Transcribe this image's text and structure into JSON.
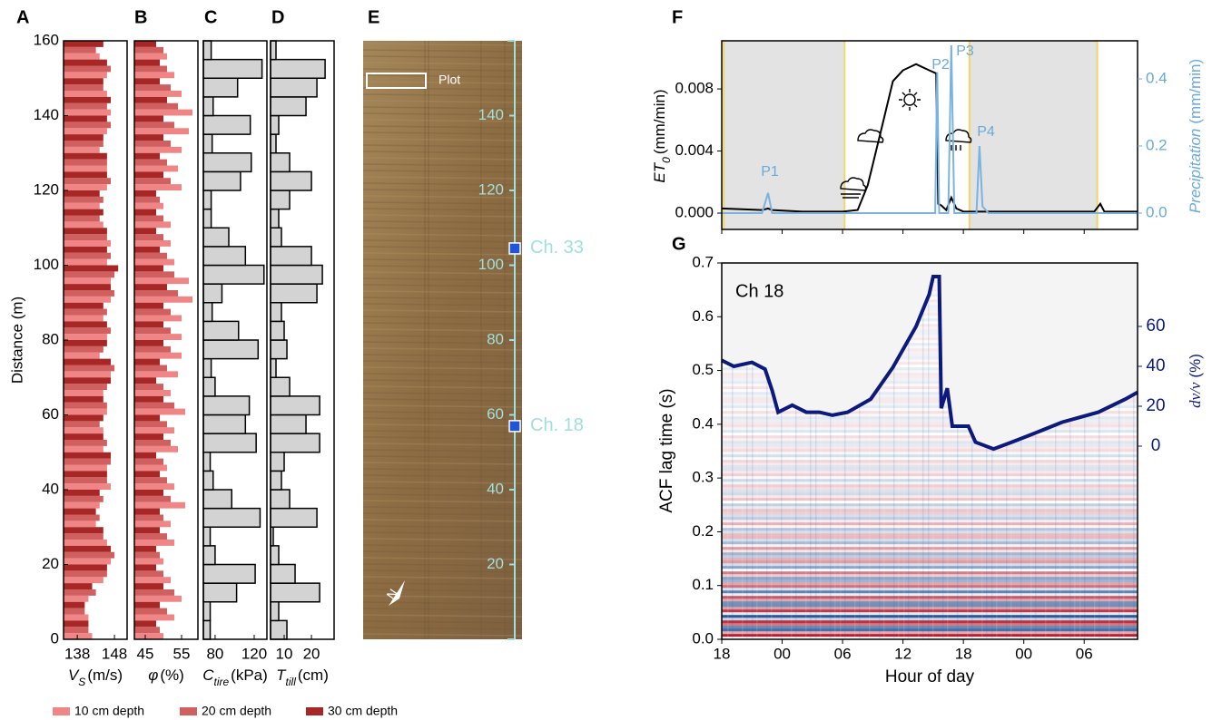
{
  "chart_data": [
    {
      "type": "hbar",
      "panel": "A",
      "ylabel": "Distance (m)",
      "xlabel": "V",
      "xlabel_sub": "S",
      "xlabel_unit": "(m/s)",
      "y": [
        2.5,
        7.5,
        12.5,
        17.5,
        22.5,
        27.5,
        32.5,
        37.5,
        42.5,
        47.5,
        52.5,
        57.5,
        62.5,
        67.5,
        72.5,
        77.5,
        82.5,
        87.5,
        92.5,
        97.5,
        102.5,
        107.5,
        112.5,
        117.5,
        122.5,
        127.5,
        132.5,
        137.5,
        142.5,
        147.5,
        152.5,
        157.5
      ],
      "series": [
        {
          "name": "10 cm depth",
          "color": "#ef8585",
          "values": [
            142,
            141,
            141,
            145,
            147,
            146,
            143,
            144,
            147,
            146,
            145,
            145,
            146,
            145,
            147,
            144,
            146,
            145,
            147,
            147,
            146,
            147,
            145,
            144,
            146,
            146,
            144,
            146,
            147,
            146,
            146,
            144
          ]
        },
        {
          "name": "20 cm depth",
          "color": "#d05f5f",
          "values": [
            141,
            140,
            143,
            146,
            148,
            145,
            144,
            145,
            146,
            147,
            146,
            144,
            146,
            146,
            148,
            145,
            147,
            146,
            148,
            148,
            147,
            146,
            144,
            145,
            147,
            146,
            145,
            147,
            146,
            145,
            147,
            143
          ]
        },
        {
          "name": "30 cm depth",
          "color": "#a72626",
          "values": [
            141,
            140,
            142,
            146,
            147,
            145,
            143,
            144,
            146,
            147,
            145,
            145,
            145,
            147,
            147,
            146,
            146,
            145,
            147,
            149,
            146,
            146,
            145,
            144,
            146,
            146,
            145,
            146,
            147,
            145,
            146,
            145
          ]
        }
      ],
      "xlim": [
        134.3,
        151.4
      ],
      "xticks": [
        138,
        148
      ],
      "ylim": [
        0,
        160
      ],
      "yticks": [
        0,
        20,
        40,
        60,
        80,
        100,
        120,
        140,
        160
      ]
    },
    {
      "type": "hbar",
      "panel": "B",
      "xlabel": "φ",
      "xlabel_unit": "(%)",
      "y": [
        2.5,
        7.5,
        12.5,
        17.5,
        22.5,
        27.5,
        32.5,
        37.5,
        42.5,
        47.5,
        52.5,
        57.5,
        62.5,
        67.5,
        72.5,
        77.5,
        82.5,
        87.5,
        92.5,
        97.5,
        102.5,
        107.5,
        112.5,
        117.5,
        122.5,
        127.5,
        132.5,
        137.5,
        142.5,
        147.5,
        152.5,
        157.5
      ],
      "series": [
        {
          "name": "10 cm depth",
          "color": "#ef8585",
          "values": [
            50,
            53,
            55,
            52,
            50,
            53,
            52,
            56,
            53,
            51,
            54,
            53,
            56,
            52,
            54,
            55,
            55,
            55,
            58,
            57,
            53,
            52,
            52,
            50,
            55,
            54,
            55,
            57,
            58,
            55,
            53,
            51
          ]
        },
        {
          "name": "20 cm depth",
          "color": "#d05f5f",
          "values": [
            49,
            51,
            53,
            50,
            49,
            51,
            50,
            52,
            51,
            50,
            52,
            51,
            53,
            50,
            51,
            52,
            52,
            52,
            54,
            53,
            51,
            50,
            50,
            49,
            52,
            51,
            52,
            53,
            54,
            52,
            51,
            50
          ]
        },
        {
          "name": "30 cm depth",
          "color": "#a72626",
          "values": [
            48,
            49,
            50,
            48,
            48,
            49,
            49,
            50,
            49,
            48,
            50,
            49,
            50,
            48,
            49,
            50,
            50,
            50,
            51,
            50,
            49,
            48,
            48,
            48,
            50,
            49,
            50,
            50,
            51,
            49,
            49,
            48
          ]
        }
      ],
      "xlim": [
        42,
        59.5
      ],
      "xticks": [
        45,
        55
      ],
      "ylim": [
        0,
        160
      ]
    },
    {
      "type": "hbar",
      "panel": "C",
      "xlabel": "C",
      "xlabel_sub": "tire",
      "xlabel_unit": "(kPa)",
      "color": "#d3d3d3",
      "y": [
        2.5,
        7.5,
        12.5,
        17.5,
        22.5,
        27.5,
        32.5,
        37.5,
        42.5,
        47.5,
        52.5,
        57.5,
        62.5,
        67.5,
        72.5,
        77.5,
        82.5,
        87.5,
        92.5,
        97.5,
        102.5,
        107.5,
        112.5,
        117.5,
        122.5,
        127.5,
        132.5,
        137.5,
        142.5,
        147.5,
        152.5,
        157.5
      ],
      "values": [
        75,
        75,
        102,
        121,
        80,
        75,
        126,
        97,
        78,
        75,
        122,
        111,
        115,
        80,
        76,
        124,
        104,
        77,
        87,
        130,
        111,
        94,
        76,
        76,
        106,
        117,
        77,
        116,
        78,
        103,
        128,
        76
      ],
      "xlim": [
        68,
        133
      ],
      "xticks": [
        80,
        120
      ],
      "ylim": [
        0,
        160
      ]
    },
    {
      "type": "hbar",
      "panel": "D",
      "xlabel": "T",
      "xlabel_sub": "till",
      "xlabel_unit": "(cm)",
      "color": "#d3d3d3",
      "y": [
        2.5,
        7.5,
        12.5,
        17.5,
        22.5,
        27.5,
        32.5,
        37.5,
        42.5,
        47.5,
        52.5,
        57.5,
        62.5,
        67.5,
        72.5,
        77.5,
        82.5,
        87.5,
        92.5,
        97.5,
        102.5,
        107.5,
        112.5,
        117.5,
        122.5,
        127.5,
        132.5,
        137.5,
        142.5,
        147.5,
        152.5,
        157.5
      ],
      "values": [
        11,
        8,
        23,
        14,
        8,
        6,
        22,
        12,
        9,
        10,
        23,
        18,
        23,
        12,
        7,
        11,
        10,
        9,
        22,
        24,
        20,
        9,
        8,
        12,
        20,
        12,
        7,
        8,
        18,
        22,
        25,
        7
      ],
      "xlim": [
        5,
        28.3
      ],
      "xticks": [
        10,
        20
      ],
      "ylim": [
        0,
        160
      ]
    },
    {
      "type": "scale",
      "panel": "E",
      "ylim": [
        0,
        160
      ],
      "yticks": [
        20,
        40,
        60,
        80,
        100,
        120,
        140
      ],
      "color": "#9fe0dc",
      "markers": [
        {
          "label": "Ch. 33",
          "value": 104.5
        },
        {
          "label": "Ch. 18",
          "value": 57
        }
      ],
      "marker_color": "#1f55d8",
      "plot_label": "Plot"
    },
    {
      "type": "line",
      "panel": "F",
      "ylabel": "ET",
      "ylabel_sub": "0",
      "ylabel_unit": "(mm/min)",
      "y2label": "Precipitation",
      "y2label_unit": "(mm/min)",
      "xlim": [
        0,
        41.3
      ],
      "xticks": [
        0,
        6,
        12,
        18,
        24,
        30,
        36
      ],
      "ylim": [
        -0.00105,
        0.0111
      ],
      "yticks": [
        {
          "value": 0,
          "label": "0.000"
        },
        {
          "value": 0.004,
          "label": "0.004"
        },
        {
          "value": 0.008,
          "label": "0.008"
        }
      ],
      "y2lim": [
        -0.0486,
        0.5135
      ],
      "y2ticks": [
        {
          "value": 0,
          "label": "0.0"
        },
        0.2,
        0.4
      ],
      "night_spans": [
        [
          0.2,
          12.2
        ],
        [
          24.6,
          37.3
        ]
      ],
      "series": [
        {
          "name": "ET0",
          "color": "#000000",
          "x": [
            0,
            4,
            4.6,
            5,
            8,
            12,
            13.5,
            14.5,
            16,
            17,
            18,
            19.3,
            20.6,
            21.3,
            21.5,
            21.8,
            22.3,
            22.8,
            23.3,
            24,
            30,
            37,
            37.6,
            38,
            41.3
          ],
          "values": [
            0.0003,
            0.0002,
            0.0003,
            0.0002,
            0.0001,
            0.0001,
            0.0002,
            0.0018,
            0.0058,
            0.0085,
            0.0092,
            0.0096,
            0.0092,
            0.009,
            0.0006,
            0.0005,
            0.0002,
            0.001,
            0.0003,
            0.0001,
            0.0001,
            0.0001,
            0.0006,
            0.0001,
            0.0001
          ]
        },
        {
          "name": "Precipitation",
          "color": "#7ab3e0",
          "axis": "y2",
          "x": [
            0,
            4,
            4.6,
            5,
            12,
            21.2,
            21.4,
            21.6,
            22.5,
            22.8,
            23.1,
            25.3,
            25.6,
            25.9,
            26.5,
            41.3
          ],
          "values": [
            0,
            0,
            0.06,
            0,
            0,
            0,
            0.42,
            0,
            0,
            0.5,
            0,
            0,
            0.2,
            0.02,
            0,
            0
          ]
        }
      ],
      "annotations": [
        "P1",
        "P2",
        "P3",
        "P4"
      ]
    },
    {
      "type": "heatmap",
      "panel": "G",
      "ylabel": "ACF lag time (s)",
      "y2label": "dv/v",
      "y2label_unit": "(%)",
      "xlabel": "Hour of day",
      "annotation": "Ch 18",
      "xlim": [
        0,
        41.3
      ],
      "xticks": [
        {
          "value": 0,
          "label": "18"
        },
        {
          "value": 6,
          "label": "00"
        },
        {
          "value": 12,
          "label": "06"
        },
        {
          "value": 18,
          "label": "12"
        },
        {
          "value": 24,
          "label": "18"
        },
        {
          "value": 30,
          "label": "00"
        },
        {
          "value": 36,
          "label": "06"
        }
      ],
      "ylim": [
        0,
        0.7
      ],
      "yticks": [
        {
          "value": 0,
          "label": "0.0"
        },
        0.1,
        0.2,
        0.3,
        0.4,
        0.5,
        0.6,
        0.7
      ],
      "y2lim": [
        -96.8,
        91.8
      ],
      "y2ticks": [
        0,
        20,
        40,
        60
      ],
      "series": [
        {
          "name": "dv/v",
          "color": "#0b1a7c",
          "axis": "y2",
          "x": [
            0,
            1.2,
            3,
            4.3,
            5,
            5.6,
            7,
            8.4,
            9.7,
            11,
            12.5,
            14.8,
            17,
            19.3,
            20.6,
            21,
            21.6,
            21.8,
            22.4,
            22.9,
            24.5,
            25.2,
            27,
            28.8,
            30.6,
            33.8,
            37.4,
            40.1,
            41.3
          ],
          "values": [
            43,
            40,
            42,
            38.6,
            28,
            17,
            20.5,
            17,
            17,
            15.5,
            17,
            23.6,
            39.5,
            60,
            76,
            85,
            85,
            19,
            29,
            10,
            10,
            2,
            -1.4,
            2,
            5.5,
            12,
            17,
            23.6,
            27
          ]
        }
      ]
    }
  ]
}
